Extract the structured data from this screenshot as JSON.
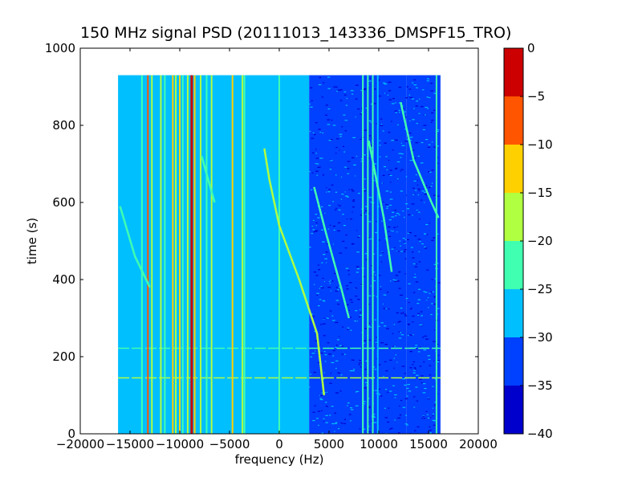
{
  "chart_data": {
    "type": "heatmap",
    "title": "150 MHz signal PSD (20111013_143336_DMSPF15_TRO)",
    "xlabel": "frequency (Hz)",
    "ylabel": "time (s)",
    "xlim": [
      -20000,
      20000
    ],
    "ylim": [
      0,
      1000
    ],
    "x_ticks": [
      -20000,
      -15000,
      -10000,
      -5000,
      0,
      5000,
      10000,
      15000,
      20000
    ],
    "x_tick_labels": [
      "−20000",
      "−15000",
      "−10000",
      "−5000",
      "0",
      "5000",
      "10000",
      "15000",
      "20000"
    ],
    "y_ticks": [
      0,
      200,
      400,
      600,
      800,
      1000
    ],
    "y_tick_labels": [
      "0",
      "200",
      "400",
      "600",
      "800",
      "1000"
    ],
    "data_extent": {
      "x": [
        -16200,
        16200
      ],
      "y": [
        0,
        930
      ]
    },
    "background_levels": [
      {
        "x": [
          -16200,
          3000
        ],
        "level": -28
      },
      {
        "x": [
          3000,
          8500
        ],
        "level": -33
      },
      {
        "x": [
          8500,
          12800
        ],
        "level": -33
      },
      {
        "x": [
          12800,
          16200
        ],
        "level": -32
      }
    ],
    "vertical_lines": [
      {
        "x": -13800,
        "level": -23
      },
      {
        "x": -13200,
        "level": -10
      },
      {
        "x": -12800,
        "level": -20
      },
      {
        "x": -11900,
        "level": -18
      },
      {
        "x": -11500,
        "level": -23
      },
      {
        "x": -10700,
        "level": -14
      },
      {
        "x": -10400,
        "level": -20
      },
      {
        "x": -10000,
        "level": -14
      },
      {
        "x": -9700,
        "level": -22
      },
      {
        "x": -9200,
        "level": -16
      },
      {
        "x": -8800,
        "level": -3
      },
      {
        "x": -8500,
        "level": -14
      },
      {
        "x": -7900,
        "level": -18
      },
      {
        "x": -7300,
        "level": -22
      },
      {
        "x": -6800,
        "level": -18
      },
      {
        "x": -4700,
        "level": -12
      },
      {
        "x": -3700,
        "level": -18
      },
      {
        "x": -3500,
        "level": -23
      },
      {
        "x": 0,
        "level": -22
      },
      {
        "x": 8400,
        "level": -23
      },
      {
        "x": 8900,
        "level": -22
      },
      {
        "x": 9400,
        "level": -23
      },
      {
        "x": 9900,
        "level": -27
      },
      {
        "x": 15800,
        "level": -23
      }
    ],
    "drift_tracks": [
      {
        "level": -16,
        "points": [
          [
            -1500,
            740
          ],
          [
            -1000,
            660
          ],
          [
            0,
            540
          ],
          [
            2000,
            400
          ],
          [
            3800,
            260
          ],
          [
            4500,
            100
          ]
        ]
      },
      {
        "level": -24,
        "points": [
          [
            -16000,
            590
          ],
          [
            -14500,
            460
          ],
          [
            -13000,
            380
          ]
        ]
      },
      {
        "level": -24,
        "points": [
          [
            3500,
            640
          ],
          [
            4700,
            520
          ],
          [
            6200,
            380
          ],
          [
            7000,
            300
          ]
        ]
      },
      {
        "level": -24,
        "points": [
          [
            -7800,
            720
          ],
          [
            -6500,
            600
          ]
        ]
      },
      {
        "level": -24,
        "points": [
          [
            9000,
            760
          ],
          [
            10500,
            560
          ],
          [
            11300,
            420
          ]
        ]
      },
      {
        "level": -24,
        "points": [
          [
            12200,
            860
          ],
          [
            13500,
            710
          ],
          [
            15300,
            600
          ],
          [
            16000,
            560
          ]
        ]
      }
    ],
    "horizontal_lines": [
      {
        "y": 145,
        "level": -20
      },
      {
        "y": 222,
        "level": -24
      }
    ],
    "colorbar": {
      "min": -40,
      "max": 0,
      "ticks": [
        0,
        -5,
        -10,
        -15,
        -20,
        -25,
        -30,
        -35,
        -40
      ],
      "tick_labels": [
        "0",
        "−5",
        "−10",
        "−15",
        "−20",
        "−25",
        "−30",
        "−35",
        "−40"
      ],
      "bins": [
        {
          "from": -40,
          "to": -35,
          "color": "#0000cc"
        },
        {
          "from": -35,
          "to": -30,
          "color": "#0040ff"
        },
        {
          "from": -30,
          "to": -25,
          "color": "#00bfff"
        },
        {
          "from": -25,
          "to": -20,
          "color": "#40ffb0"
        },
        {
          "from": -20,
          "to": -15,
          "color": "#b0ff40"
        },
        {
          "from": -15,
          "to": -10,
          "color": "#ffd000"
        },
        {
          "from": -10,
          "to": -5,
          "color": "#ff5500"
        },
        {
          "from": -5,
          "to": 0,
          "color": "#cc0000"
        }
      ]
    }
  }
}
